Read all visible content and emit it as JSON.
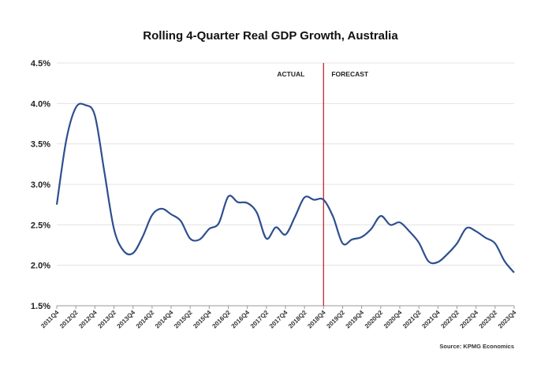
{
  "chart_data": {
    "type": "line",
    "title": "Rolling 4-Quarter Real GDP Growth, Australia",
    "xlabel": "",
    "ylabel": "",
    "ylim": [
      1.5,
      4.5
    ],
    "yticks": [
      "1.5%",
      "2.0%",
      "2.5%",
      "3.0%",
      "3.5%",
      "4.0%",
      "4.5%"
    ],
    "x_tick_labels": [
      "2011Q4",
      "2012Q2",
      "2012Q4",
      "2013Q2",
      "2013Q4",
      "2014Q2",
      "2014Q4",
      "2015Q2",
      "2015Q4",
      "2016Q2",
      "2016Q4",
      "2017Q2",
      "2017Q4",
      "2018Q2",
      "2018Q4",
      "2019Q2",
      "2019Q4",
      "2020Q2",
      "2020Q4",
      "2021Q2",
      "2021Q4",
      "2022Q2",
      "2022Q4",
      "2023Q2",
      "2023Q4"
    ],
    "x": [
      "2011Q4",
      "2012Q1",
      "2012Q2",
      "2012Q3",
      "2012Q4",
      "2013Q1",
      "2013Q2",
      "2013Q3",
      "2013Q4",
      "2014Q1",
      "2014Q2",
      "2014Q3",
      "2014Q4",
      "2015Q1",
      "2015Q2",
      "2015Q3",
      "2015Q4",
      "2016Q1",
      "2016Q2",
      "2016Q3",
      "2016Q4",
      "2017Q1",
      "2017Q2",
      "2017Q3",
      "2017Q4",
      "2018Q1",
      "2018Q2",
      "2018Q3",
      "2018Q4",
      "2019Q1",
      "2019Q2",
      "2019Q3",
      "2019Q4",
      "2020Q1",
      "2020Q2",
      "2020Q3",
      "2020Q4",
      "2021Q1",
      "2021Q2",
      "2021Q3",
      "2021Q4",
      "2022Q1",
      "2022Q2",
      "2022Q3",
      "2022Q4",
      "2023Q1",
      "2023Q2",
      "2023Q3",
      "2023Q4"
    ],
    "series": [
      {
        "color": "#2e4f8f",
        "values": [
          2.75,
          3.55,
          3.95,
          3.98,
          3.85,
          3.15,
          2.45,
          2.18,
          2.15,
          2.35,
          2.62,
          2.7,
          2.63,
          2.55,
          2.33,
          2.32,
          2.45,
          2.52,
          2.85,
          2.78,
          2.77,
          2.65,
          2.33,
          2.47,
          2.38,
          2.6,
          2.84,
          2.81,
          2.81,
          2.6,
          2.27,
          2.32,
          2.35,
          2.45,
          2.61,
          2.5,
          2.53,
          2.42,
          2.28,
          2.05,
          2.04,
          2.14,
          2.27,
          2.46,
          2.42,
          2.34,
          2.27,
          2.05,
          1.91
        ]
      }
    ],
    "annotations": {
      "divider_at": "2018Q4",
      "divider_color": "#c0282e",
      "left_label": "ACTUAL",
      "right_label": "FORECAST"
    },
    "grid": "horizontal",
    "source": "Source:  KPMG Economics"
  }
}
